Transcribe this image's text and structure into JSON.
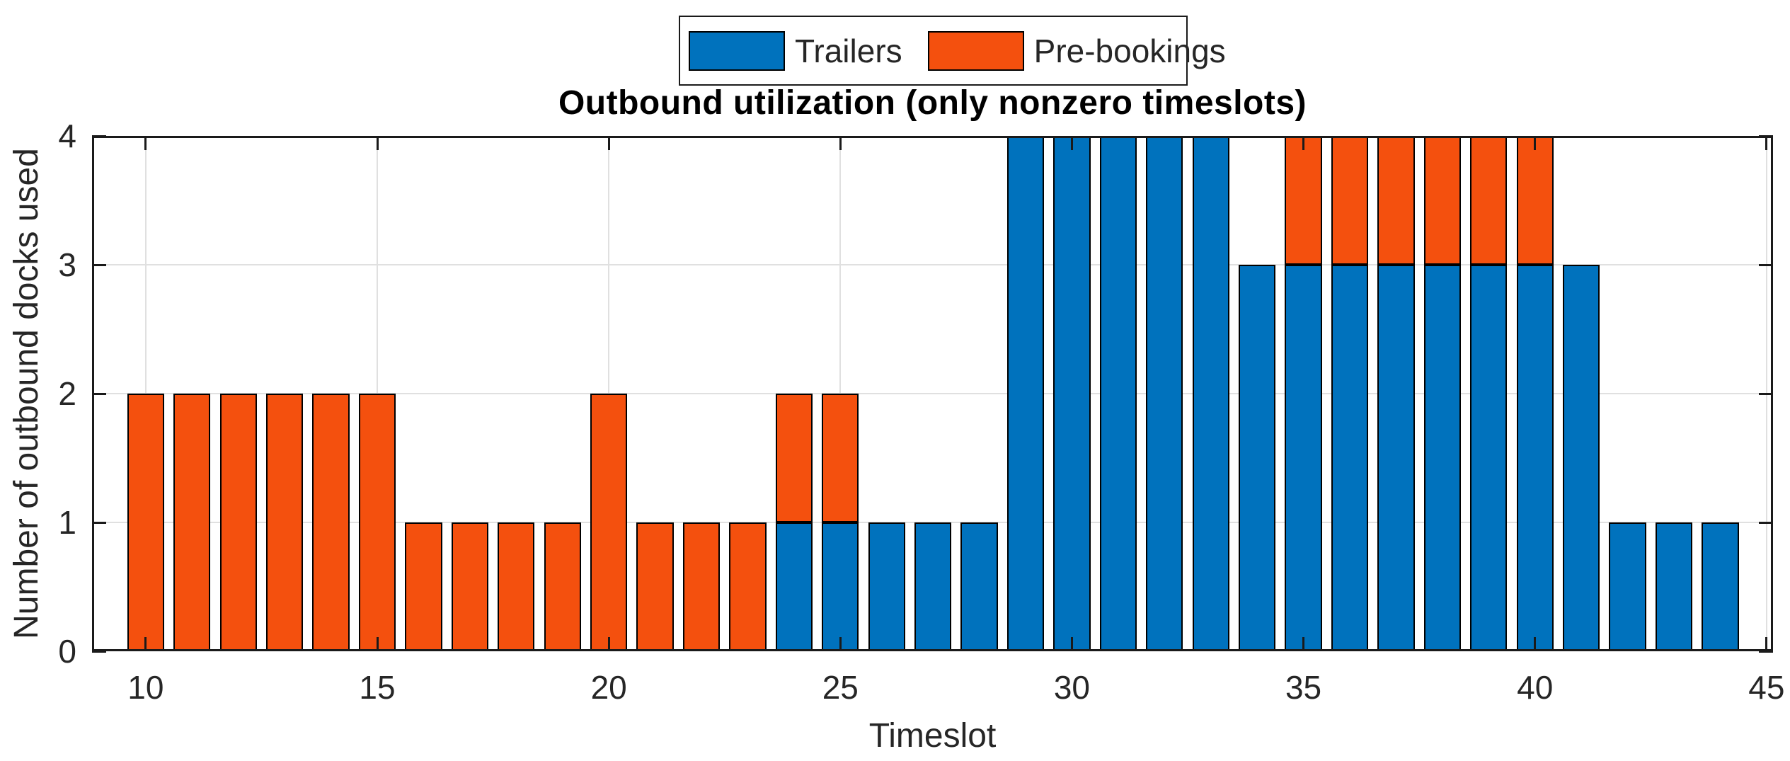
{
  "chart_data": {
    "type": "bar",
    "stacked": true,
    "title": "Outbound utilization (only nonzero timeslots)",
    "xlabel": "Timeslot",
    "ylabel": "Number of outbound docks used",
    "categories": [
      10,
      11,
      12,
      13,
      14,
      15,
      16,
      17,
      18,
      19,
      20,
      21,
      22,
      23,
      24,
      25,
      26,
      27,
      28,
      29,
      30,
      31,
      32,
      33,
      34,
      35,
      36,
      37,
      38,
      39,
      40,
      41,
      42,
      43,
      44
    ],
    "series": [
      {
        "name": "Trailers",
        "color": "#0072BD",
        "values": [
          0,
          0,
          0,
          0,
          0,
          0,
          0,
          0,
          0,
          0,
          0,
          0,
          0,
          0,
          1,
          1,
          1,
          1,
          1,
          4,
          4,
          4,
          4,
          4,
          3,
          3,
          3,
          3,
          3,
          3,
          3,
          3,
          1,
          1,
          1
        ]
      },
      {
        "name": "Pre-bookings",
        "color": "#F4500E",
        "values": [
          2,
          2,
          2,
          2,
          2,
          2,
          1,
          1,
          1,
          1,
          2,
          1,
          1,
          1,
          1,
          1,
          0,
          0,
          0,
          0,
          0,
          0,
          0,
          0,
          0,
          1,
          1,
          1,
          1,
          1,
          1,
          0,
          0,
          0,
          0
        ]
      }
    ],
    "xticks": [
      10,
      15,
      20,
      25,
      30,
      35,
      40,
      45
    ],
    "yticks": [
      0,
      1,
      2,
      3,
      4
    ],
    "xlim": [
      8.84,
      45.14
    ],
    "ylim": [
      0,
      4
    ],
    "bar_width": 0.8,
    "grid": true,
    "legend_position": "top-center",
    "colors": {
      "axis": "#1A1A1A",
      "grid": "#E0E0E0",
      "bar_edge": "#000000",
      "text": "#262626",
      "background": "#FFFFFF"
    }
  }
}
